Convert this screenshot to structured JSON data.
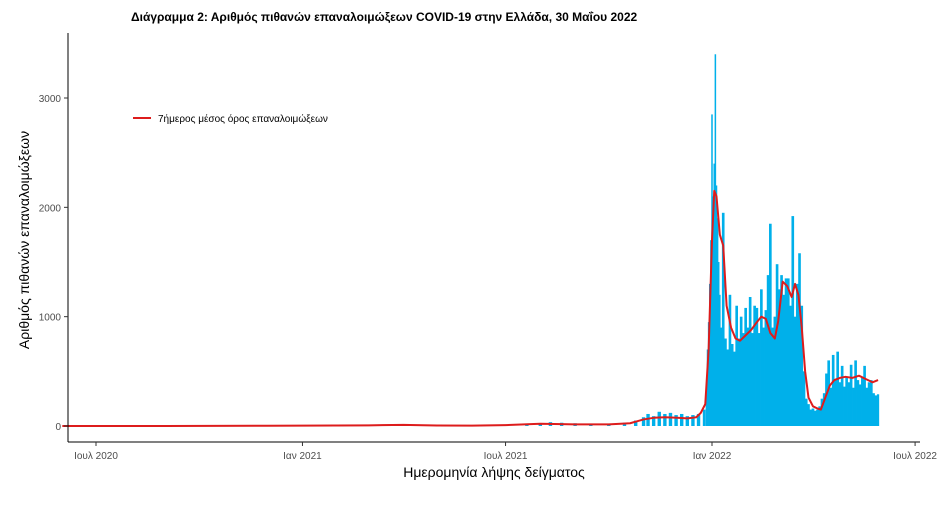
{
  "chart_data": {
    "type": "bar+line",
    "title": "Διάγραμμα 2: Αριθμός πιθανών επαναλοιμώξεων COVID-19 στην Ελλάδα, 30 Μαΐου 2022",
    "xlabel": "Ημερομηνία λήψης δείγματος",
    "ylabel": "Αριθμός πιθανών επαναλοιμώξεων",
    "x_ticks": [
      {
        "date": "2020-07-01",
        "label": "Ιουλ 2020"
      },
      {
        "date": "2021-01-01",
        "label": "Ιαν 2021"
      },
      {
        "date": "2021-07-01",
        "label": "Ιουλ 2021"
      },
      {
        "date": "2022-01-01",
        "label": "Ιαν 2022"
      },
      {
        "date": "2022-07-01",
        "label": "Ιουλ 2022"
      }
    ],
    "xlim": [
      "2020-06-01",
      "2022-07-01"
    ],
    "y_ticks": [
      0,
      1000,
      2000,
      3000
    ],
    "ylim": [
      -150,
      3600
    ],
    "grid": false,
    "legend_position": "top-left",
    "series": [
      {
        "name": "",
        "kind": "bar",
        "color": "#00b0ea",
        "points": [
          [
            "2021-07-20",
            15
          ],
          [
            "2021-08-01",
            25
          ],
          [
            "2021-08-10",
            35
          ],
          [
            "2021-08-20",
            30
          ],
          [
            "2021-09-01",
            25
          ],
          [
            "2021-09-15",
            20
          ],
          [
            "2021-10-01",
            20
          ],
          [
            "2021-10-15",
            30
          ],
          [
            "2021-10-25",
            50
          ],
          [
            "2021-11-01",
            80
          ],
          [
            "2021-11-05",
            110
          ],
          [
            "2021-11-10",
            90
          ],
          [
            "2021-11-15",
            130
          ],
          [
            "2021-11-20",
            110
          ],
          [
            "2021-11-25",
            120
          ],
          [
            "2021-11-30",
            100
          ],
          [
            "2021-12-05",
            110
          ],
          [
            "2021-12-10",
            90
          ],
          [
            "2021-12-15",
            100
          ],
          [
            "2021-12-20",
            110
          ],
          [
            "2021-12-25",
            150
          ],
          [
            "2021-12-27",
            300
          ],
          [
            "2021-12-28",
            700
          ],
          [
            "2021-12-29",
            950
          ],
          [
            "2021-12-30",
            1300
          ],
          [
            "2021-12-31",
            1700
          ],
          [
            "2022-01-01",
            2850
          ],
          [
            "2022-01-02",
            2100
          ],
          [
            "2022-01-03",
            2400
          ],
          [
            "2022-01-04",
            3400
          ],
          [
            "2022-01-05",
            2200
          ],
          [
            "2022-01-06",
            1900
          ],
          [
            "2022-01-07",
            1500
          ],
          [
            "2022-01-08",
            1200
          ],
          [
            "2022-01-09",
            900
          ],
          [
            "2022-01-11",
            1950
          ],
          [
            "2022-01-13",
            800
          ],
          [
            "2022-01-15",
            700
          ],
          [
            "2022-01-17",
            1200
          ],
          [
            "2022-01-19",
            750
          ],
          [
            "2022-01-21",
            680
          ],
          [
            "2022-01-23",
            1100
          ],
          [
            "2022-01-25",
            800
          ],
          [
            "2022-01-27",
            1000
          ],
          [
            "2022-01-29",
            850
          ],
          [
            "2022-01-31",
            1080
          ],
          [
            "2022-02-02",
            900
          ],
          [
            "2022-02-04",
            1180
          ],
          [
            "2022-02-06",
            850
          ],
          [
            "2022-02-08",
            1100
          ],
          [
            "2022-02-10",
            1080
          ],
          [
            "2022-02-12",
            850
          ],
          [
            "2022-02-14",
            1250
          ],
          [
            "2022-02-16",
            900
          ],
          [
            "2022-02-18",
            1060
          ],
          [
            "2022-02-20",
            1380
          ],
          [
            "2022-02-22",
            1850
          ],
          [
            "2022-02-24",
            900
          ],
          [
            "2022-02-26",
            1000
          ],
          [
            "2022-02-28",
            1480
          ],
          [
            "2022-03-02",
            1250
          ],
          [
            "2022-03-04",
            1380
          ],
          [
            "2022-03-06",
            1200
          ],
          [
            "2022-03-08",
            1350
          ],
          [
            "2022-03-10",
            1350
          ],
          [
            "2022-03-12",
            1100
          ],
          [
            "2022-03-14",
            1920
          ],
          [
            "2022-03-16",
            1000
          ],
          [
            "2022-03-18",
            1300
          ],
          [
            "2022-03-20",
            1580
          ],
          [
            "2022-03-22",
            1100
          ],
          [
            "2022-03-24",
            500
          ],
          [
            "2022-03-26",
            250
          ],
          [
            "2022-03-28",
            200
          ],
          [
            "2022-03-30",
            150
          ],
          [
            "2022-04-01",
            160
          ],
          [
            "2022-04-03",
            140
          ],
          [
            "2022-04-05",
            150
          ],
          [
            "2022-04-07",
            180
          ],
          [
            "2022-04-09",
            250
          ],
          [
            "2022-04-11",
            300
          ],
          [
            "2022-04-13",
            480
          ],
          [
            "2022-04-15",
            600
          ],
          [
            "2022-04-17",
            350
          ],
          [
            "2022-04-19",
            650
          ],
          [
            "2022-04-21",
            420
          ],
          [
            "2022-04-23",
            680
          ],
          [
            "2022-04-25",
            400
          ],
          [
            "2022-04-27",
            550
          ],
          [
            "2022-04-29",
            360
          ],
          [
            "2022-05-01",
            450
          ],
          [
            "2022-05-03",
            400
          ],
          [
            "2022-05-05",
            560
          ],
          [
            "2022-05-07",
            350
          ],
          [
            "2022-05-09",
            600
          ],
          [
            "2022-05-11",
            420
          ],
          [
            "2022-05-13",
            380
          ],
          [
            "2022-05-15",
            450
          ],
          [
            "2022-05-17",
            550
          ],
          [
            "2022-05-19",
            350
          ],
          [
            "2022-05-21",
            400
          ],
          [
            "2022-05-23",
            420
          ],
          [
            "2022-05-25",
            300
          ],
          [
            "2022-05-27",
            280
          ],
          [
            "2022-05-29",
            290
          ]
        ]
      },
      {
        "name": "7ήμερος μέσος όρος επαναλοιμώξεων",
        "kind": "line",
        "color": "#dd1c1c",
        "points": [
          [
            "2020-06-01",
            0
          ],
          [
            "2020-09-01",
            0
          ],
          [
            "2020-12-01",
            2
          ],
          [
            "2021-01-01",
            3
          ],
          [
            "2021-03-01",
            6
          ],
          [
            "2021-04-01",
            10
          ],
          [
            "2021-05-01",
            5
          ],
          [
            "2021-06-01",
            3
          ],
          [
            "2021-07-01",
            8
          ],
          [
            "2021-08-01",
            20
          ],
          [
            "2021-09-01",
            15
          ],
          [
            "2021-10-01",
            15
          ],
          [
            "2021-10-20",
            25
          ],
          [
            "2021-11-01",
            60
          ],
          [
            "2021-11-10",
            75
          ],
          [
            "2021-11-20",
            80
          ],
          [
            "2021-12-01",
            75
          ],
          [
            "2021-12-10",
            70
          ],
          [
            "2021-12-18",
            80
          ],
          [
            "2021-12-22",
            120
          ],
          [
            "2021-12-26",
            200
          ],
          [
            "2021-12-29",
            700
          ],
          [
            "2022-01-01",
            1700
          ],
          [
            "2022-01-03",
            2150
          ],
          [
            "2022-01-05",
            2100
          ],
          [
            "2022-01-08",
            1750
          ],
          [
            "2022-01-11",
            1650
          ],
          [
            "2022-01-14",
            1100
          ],
          [
            "2022-01-18",
            900
          ],
          [
            "2022-01-22",
            800
          ],
          [
            "2022-01-26",
            780
          ],
          [
            "2022-01-30",
            820
          ],
          [
            "2022-02-05",
            880
          ],
          [
            "2022-02-10",
            950
          ],
          [
            "2022-02-14",
            1000
          ],
          [
            "2022-02-18",
            980
          ],
          [
            "2022-02-22",
            850
          ],
          [
            "2022-02-26",
            800
          ],
          [
            "2022-03-01",
            960
          ],
          [
            "2022-03-05",
            1320
          ],
          [
            "2022-03-09",
            1280
          ],
          [
            "2022-03-13",
            1180
          ],
          [
            "2022-03-16",
            1300
          ],
          [
            "2022-03-19",
            1200
          ],
          [
            "2022-03-22",
            900
          ],
          [
            "2022-03-25",
            500
          ],
          [
            "2022-03-28",
            260
          ],
          [
            "2022-04-01",
            180
          ],
          [
            "2022-04-05",
            160
          ],
          [
            "2022-04-08",
            150
          ],
          [
            "2022-04-12",
            260
          ],
          [
            "2022-04-16",
            370
          ],
          [
            "2022-04-20",
            420
          ],
          [
            "2022-04-25",
            440
          ],
          [
            "2022-04-30",
            450
          ],
          [
            "2022-05-06",
            440
          ],
          [
            "2022-05-12",
            460
          ],
          [
            "2022-05-18",
            430
          ],
          [
            "2022-05-24",
            400
          ],
          [
            "2022-05-29",
            420
          ]
        ]
      }
    ]
  }
}
